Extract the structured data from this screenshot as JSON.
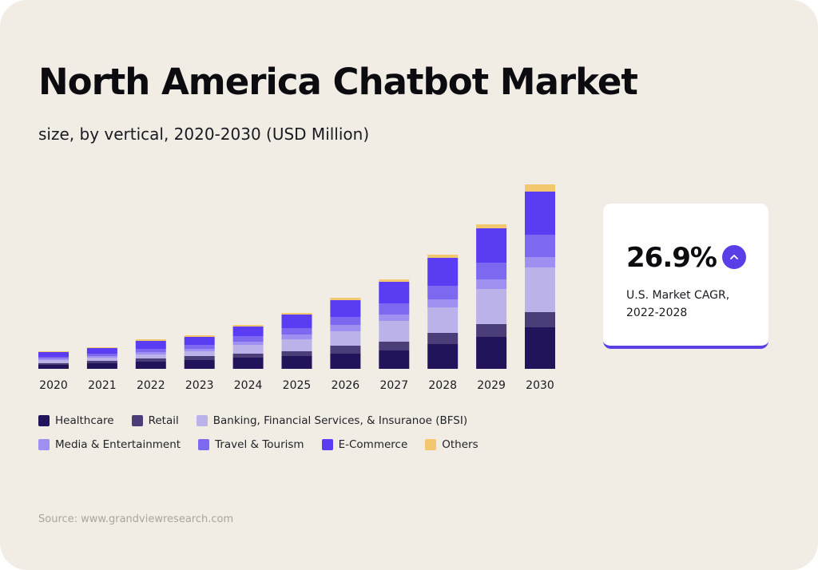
{
  "header": {
    "title": "North America Chatbot Market",
    "subtitle": "size, by vertical, 2020-2030 (USD Million)"
  },
  "cagr": {
    "value": "26.9%",
    "label": "U.S. Market CAGR, 2022-2028",
    "icon": "arrow-up-icon",
    "accent_color": "#5b3fe6"
  },
  "source": "Source: www.grandviewresearch.com",
  "chart_data": {
    "type": "bar",
    "stacked": true,
    "categories": [
      "2020",
      "2021",
      "2022",
      "2023",
      "2024",
      "2025",
      "2026",
      "2027",
      "2028",
      "2029",
      "2030"
    ],
    "series": [
      {
        "name": "Healthcare",
        "color": "#22145a",
        "values": [
          5,
          7,
          9,
          11,
          14,
          16,
          19,
          23,
          31,
          40,
          52
        ]
      },
      {
        "name": "Retail",
        "color": "#4b3d78",
        "values": [
          2,
          3,
          4,
          5,
          5,
          6,
          10,
          11,
          14,
          16,
          19
        ]
      },
      {
        "name": "Banking, Financial Services, & Insuranoe (BFSI)",
        "color": "#bab2e8",
        "values": [
          4,
          4,
          5,
          6,
          11,
          15,
          18,
          26,
          32,
          44,
          56
        ]
      },
      {
        "name": "Media & Entertainment",
        "color": "#9e8ff0",
        "values": [
          2,
          2,
          3,
          3,
          4,
          6,
          8,
          8,
          10,
          12,
          13
        ]
      },
      {
        "name": "Travel & Tourism",
        "color": "#7d68f0",
        "values": [
          2,
          3,
          4,
          5,
          7,
          8,
          10,
          14,
          17,
          21,
          28
        ]
      },
      {
        "name": "E-Commerce",
        "color": "#5a3cf2",
        "values": [
          6,
          7,
          10,
          10,
          12,
          17,
          21,
          27,
          35,
          43,
          54
        ]
      },
      {
        "name": "Others",
        "color": "#f2c76e",
        "values": [
          1,
          1,
          2,
          2,
          2,
          2,
          3,
          3,
          4,
          5,
          9
        ]
      }
    ]
  }
}
